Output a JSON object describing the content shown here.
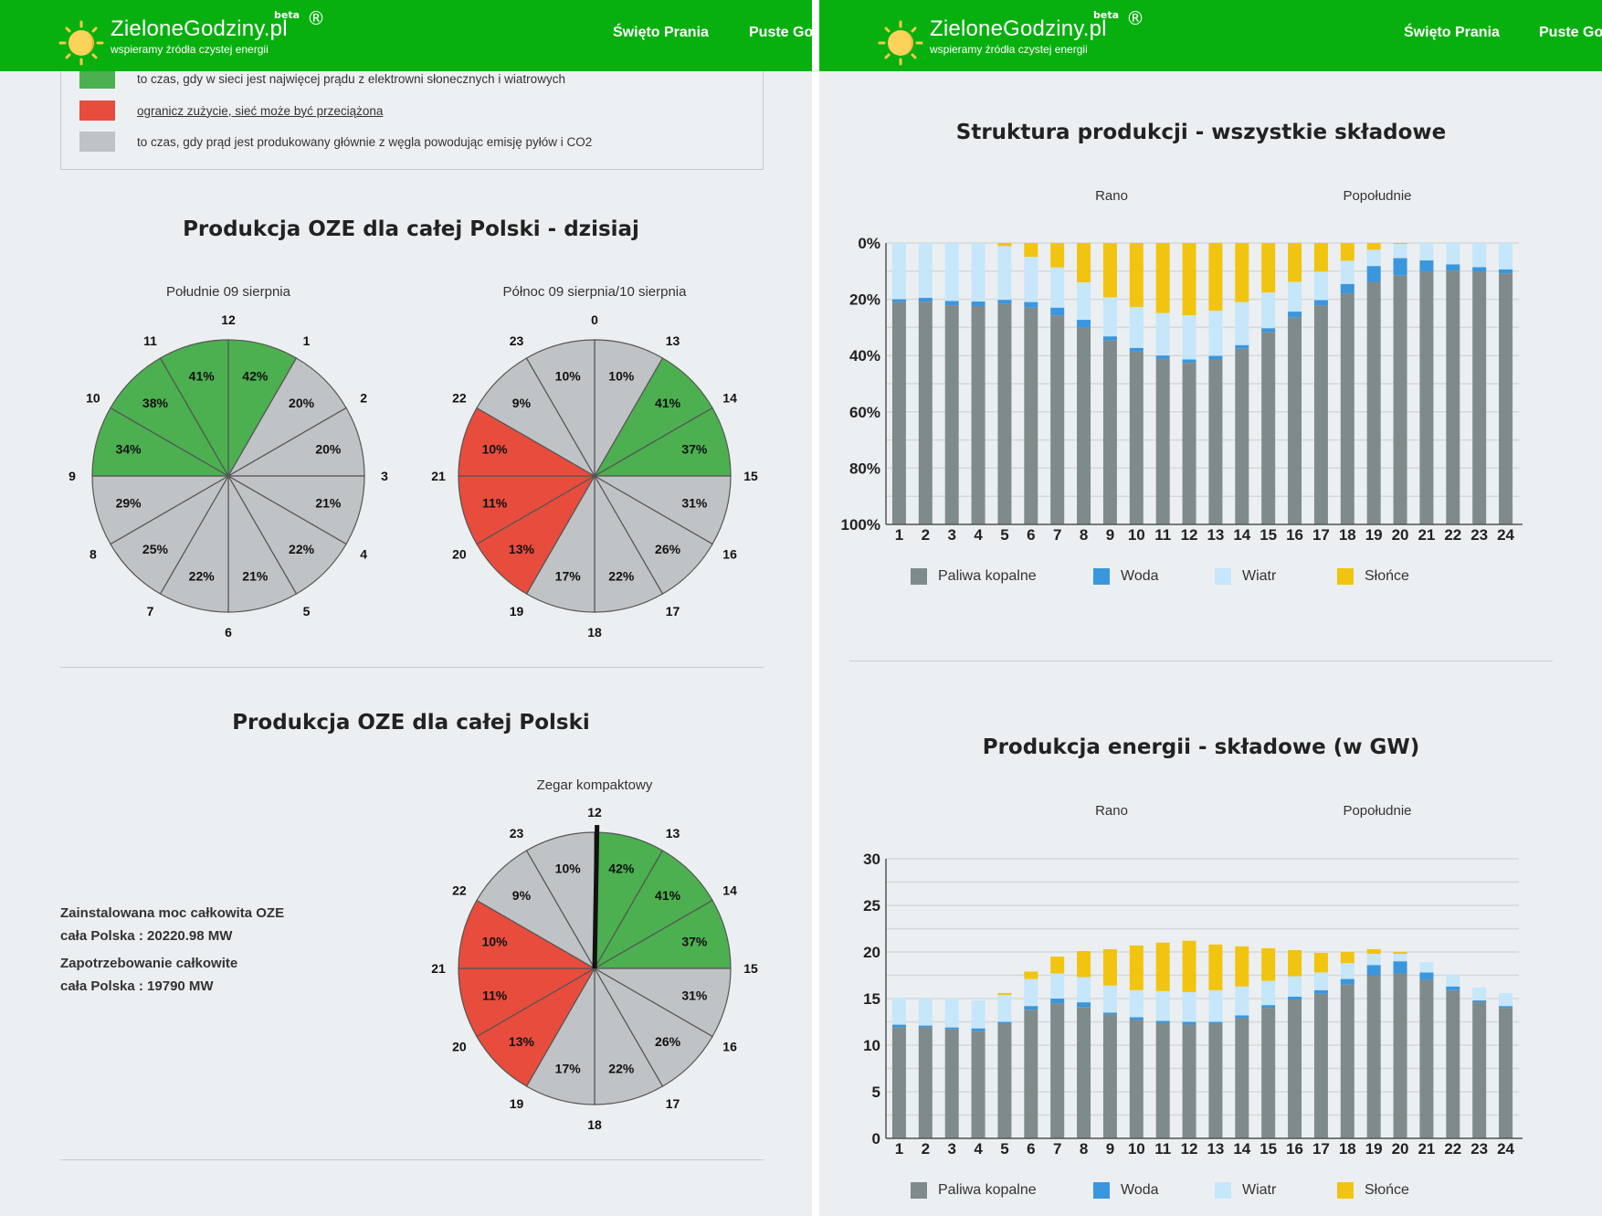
{
  "header": {
    "logo_title": "ZieloneGodziny.pl",
    "logo_beta": "beta",
    "logo_reg": "®",
    "logo_subtitle": "wspieramy źródła czystej energii",
    "nav": [
      "Święto Prania",
      "Puste Go"
    ]
  },
  "legend": {
    "items": [
      {
        "color": "#4caf50",
        "text": "to czas, gdy w sieci jest najwięcej prądu z elektrowni słonecznych i wiatrowych"
      },
      {
        "color": "#e74c3c",
        "text": "ogranicz zużycie, sieć może być przeciążona"
      },
      {
        "color": "#bfc3c6",
        "text": "to czas, gdy prąd jest produkowany głównie z węgla powodując emisję pyłów i CO2"
      }
    ]
  },
  "left": {
    "section1_title": "Produkcja OZE dla całej Polski - dzisiaj",
    "section2_title": "Produkcja OZE dla całej Polski",
    "info": {
      "installed_label": "Zainstalowana moc całkowita OZE",
      "installed_value": "cała Polska : 20220.98 MW",
      "demand_label": "Zapotrzebowanie całkowite",
      "demand_value": "cała Polska : 19790 MW"
    }
  },
  "right": {
    "chart1_title": "Struktura produkcji - wszystkie składowe",
    "chart2_title": "Produkcja energii - składowe (w GW)",
    "rano": "Rano",
    "popoludnie": "Popołudnie"
  },
  "colors": {
    "green": "#4caf50",
    "red": "#e74c3c",
    "gray": "#bfc3c6",
    "fossil": "#7f8b8a",
    "water": "#3a96dd",
    "wind": "#c6e6fa",
    "solar": "#f1c40f"
  },
  "chart_data": [
    {
      "type": "pie",
      "title": "Południe 09 sierpnia",
      "hour_labels": [
        "12",
        "1",
        "2",
        "3",
        "4",
        "5",
        "6",
        "7",
        "8",
        "9",
        "10",
        "11"
      ],
      "values": [
        42,
        20,
        20,
        21,
        22,
        21,
        22,
        25,
        29,
        34,
        38,
        41
      ],
      "status": [
        "green",
        "gray",
        "gray",
        "gray",
        "gray",
        "gray",
        "gray",
        "gray",
        "gray",
        "green",
        "green",
        "green"
      ]
    },
    {
      "type": "pie",
      "title": "Północ 09 sierpnia/10 sierpnia",
      "hour_labels": [
        "0",
        "13",
        "14",
        "15",
        "16",
        "17",
        "18",
        "19",
        "20",
        "21",
        "22",
        "23"
      ],
      "values": [
        10,
        41,
        37,
        31,
        26,
        22,
        17,
        13,
        11,
        10,
        9,
        10
      ],
      "status": [
        "gray",
        "green",
        "green",
        "gray",
        "gray",
        "gray",
        "gray",
        "red",
        "red",
        "red",
        "gray",
        "gray"
      ]
    },
    {
      "type": "pie",
      "title": "Zegar kompaktowy",
      "hour_labels": [
        "12",
        "13",
        "14",
        "15",
        "16",
        "17",
        "18",
        "19",
        "20",
        "21",
        "22",
        "23"
      ],
      "values": [
        42,
        41,
        37,
        31,
        26,
        22,
        17,
        13,
        11,
        10,
        9,
        10
      ],
      "status": [
        "green",
        "green",
        "green",
        "gray",
        "gray",
        "gray",
        "gray",
        "red",
        "red",
        "red",
        "gray",
        "gray"
      ],
      "current_hour": 12
    },
    {
      "type": "bar",
      "stacked": true,
      "title": "Struktura produkcji - wszystkie składowe",
      "categories": [
        "1",
        "2",
        "3",
        "4",
        "5",
        "6",
        "7",
        "8",
        "9",
        "10",
        "11",
        "12",
        "13",
        "14",
        "15",
        "16",
        "17",
        "18",
        "19",
        "20",
        "21",
        "22",
        "23",
        "24"
      ],
      "ylim": [
        0,
        100
      ],
      "yticks": [
        "0%",
        "20%",
        "40%",
        "60%",
        "80%",
        "100%"
      ],
      "y_inverted": true,
      "series": [
        {
          "name": "Słońce",
          "key": "solar",
          "values": [
            0,
            0,
            0,
            0,
            1.1,
            4.9,
            8.7,
            14,
            19.3,
            22.8,
            24.9,
            25.7,
            24.1,
            21,
            17.6,
            13.8,
            10.2,
            6.3,
            2.4,
            0.4,
            0,
            0,
            0,
            0
          ]
        },
        {
          "name": "Wiatr",
          "key": "wind",
          "values": [
            20,
            19.5,
            20.6,
            20.8,
            19.1,
            16.1,
            14.3,
            13.3,
            13.9,
            14.5,
            15.1,
            15.7,
            16,
            15.3,
            12.7,
            10.6,
            10.1,
            8.3,
            5.8,
            5,
            6.2,
            7.6,
            8.6,
            9.4
          ]
        },
        {
          "name": "Woda",
          "key": "water",
          "values": [
            1,
            1.3,
            1.5,
            1.6,
            1.5,
            2,
            2.7,
            2.7,
            1.5,
            1.3,
            1.2,
            1.2,
            1.3,
            1.3,
            1.4,
            2.1,
            1.9,
            3.3,
            5.6,
            6.2,
            4,
            2.2,
            1.6,
            1.4
          ]
        },
        {
          "name": "Paliwa kopalne",
          "key": "fossil",
          "values": [
            79,
            79.2,
            77.9,
            77.6,
            78.3,
            77,
            74.3,
            70,
            65.3,
            61.4,
            58.8,
            57.4,
            58.6,
            62.4,
            68.3,
            73.5,
            77.8,
            82.1,
            86.2,
            88.4,
            89.8,
            90.2,
            89.8,
            89.2
          ]
        }
      ],
      "legend": [
        "Paliwa kopalne",
        "Woda",
        "Wiatr",
        "Słońce"
      ]
    },
    {
      "type": "bar",
      "stacked": true,
      "title": "Produkcja energii - składowe (w GW)",
      "categories": [
        "1",
        "2",
        "3",
        "4",
        "5",
        "6",
        "7",
        "8",
        "9",
        "10",
        "11",
        "12",
        "13",
        "14",
        "15",
        "16",
        "17",
        "18",
        "19",
        "20",
        "21",
        "22",
        "23",
        "24"
      ],
      "ylim": [
        0,
        30
      ],
      "yticks": [
        "0",
        "5",
        "10",
        "15",
        "20",
        "25",
        "30"
      ],
      "series": [
        {
          "name": "Paliwa kopalne",
          "key": "fossil",
          "values": [
            11.9,
            11.9,
            11.7,
            11.5,
            12.3,
            13.8,
            14.5,
            14.1,
            13.3,
            12.7,
            12.4,
            12.2,
            12.3,
            12.9,
            14.0,
            14.9,
            15.5,
            16.5,
            17.5,
            17.7,
            17.0,
            15.9,
            14.6,
            14.0
          ]
        },
        {
          "name": "Woda",
          "key": "water",
          "values": [
            0.3,
            0.2,
            0.2,
            0.3,
            0.2,
            0.4,
            0.5,
            0.5,
            0.2,
            0.3,
            0.2,
            0.3,
            0.2,
            0.3,
            0.3,
            0.3,
            0.4,
            0.6,
            1.1,
            1.3,
            0.8,
            0.4,
            0.2,
            0.2
          ]
        },
        {
          "name": "Wiatr",
          "key": "wind",
          "values": [
            2.9,
            2.9,
            3.1,
            3.0,
            2.9,
            2.9,
            2.7,
            2.7,
            2.9,
            2.9,
            3.2,
            3.2,
            3.4,
            3.1,
            2.6,
            2.2,
            1.9,
            1.7,
            1.2,
            0.8,
            1.1,
            1.3,
            1.4,
            1.4
          ]
        },
        {
          "name": "Słońce",
          "key": "solar",
          "values": [
            0,
            0,
            0,
            0,
            0.2,
            0.8,
            1.8,
            2.8,
            3.9,
            4.8,
            5.2,
            5.5,
            4.9,
            4.3,
            3.5,
            2.8,
            2.1,
            1.2,
            0.5,
            0.2,
            0,
            0,
            0,
            0
          ]
        }
      ],
      "legend": [
        "Paliwa kopalne",
        "Woda",
        "Wiatr",
        "Słońce"
      ]
    }
  ]
}
